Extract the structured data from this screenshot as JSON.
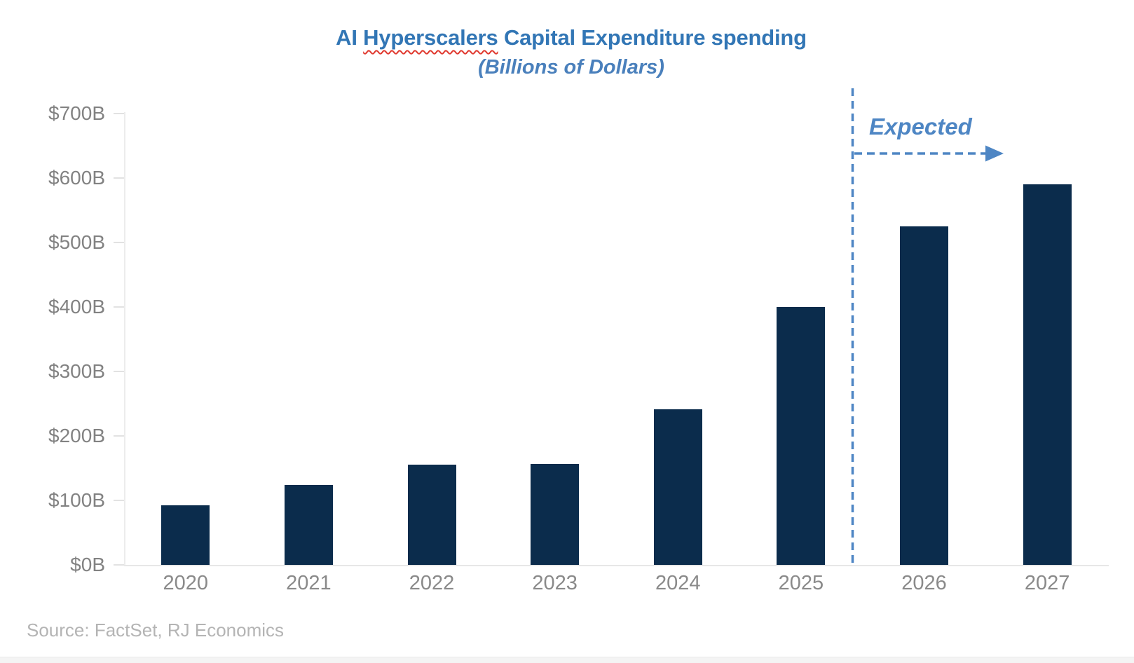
{
  "title": {
    "part1": "AI ",
    "misspelled_word": "Hyperscalers",
    "part2": " Capital Expenditure spending",
    "subtitle": "(Billions of Dollars)"
  },
  "annotation": {
    "expected_label": "Expected"
  },
  "source": {
    "text": "Source: FactSet, RJ Economics"
  },
  "colors": {
    "title_blue": "#3276b5",
    "subtitle_blue": "#4a80bc",
    "expected_blue": "#4e86c4",
    "bar_navy": "#0b2c4c",
    "squiggle_red": "#e0392f",
    "axis_gray": "#ececec",
    "ylabel_gray": "#828282",
    "xlabel_gray": "#8a8a8a",
    "source_gray": "#b4b4b4"
  },
  "chart_data": {
    "type": "bar",
    "title": "AI Hyperscalers Capital Expenditure spending",
    "subtitle": "(Billions of Dollars)",
    "unit": "billions of US dollars",
    "categories": [
      "2020",
      "2021",
      "2022",
      "2023",
      "2024",
      "2025",
      "2026",
      "2027"
    ],
    "values": [
      92,
      124,
      155,
      156,
      241,
      400,
      525,
      590
    ],
    "expected_categories": [
      "2026",
      "2027"
    ],
    "expected_divider_between": [
      "2025",
      "2026"
    ],
    "ylim": [
      0,
      700
    ],
    "ytick_step": 100,
    "yticks": [
      {
        "value": 0,
        "label": "$0B"
      },
      {
        "value": 100,
        "label": "$100B"
      },
      {
        "value": 200,
        "label": "$200B"
      },
      {
        "value": 300,
        "label": "$300B"
      },
      {
        "value": 400,
        "label": "$400B"
      },
      {
        "value": 500,
        "label": "$500B"
      },
      {
        "value": 600,
        "label": "$600B"
      },
      {
        "value": 700,
        "label": "$700B"
      }
    ],
    "grid": false,
    "legend": false
  }
}
